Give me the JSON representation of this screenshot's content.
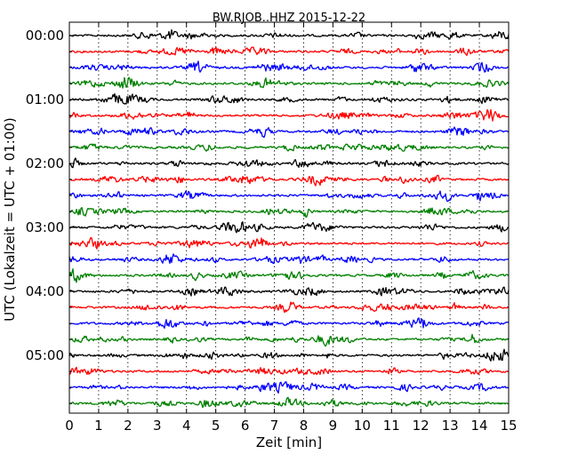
{
  "chart_data": {
    "type": "line",
    "title": "BW.RJOB..HHZ 2015-12-22",
    "xlabel": "Zeit  [min]",
    "ylabel": "UTC (Lokalzeit = UTC + 01:00)",
    "xlim": [
      0,
      15
    ],
    "x_ticks": [
      "0",
      "1",
      "2",
      "3",
      "4",
      "5",
      "6",
      "7",
      "8",
      "9",
      "10",
      "11",
      "12",
      "13",
      "14",
      "15"
    ],
    "y_ticks": [
      "00:00",
      "01:00",
      "02:00",
      "03:00",
      "04:00",
      "05:00"
    ],
    "grid": true,
    "colors": [
      "#000000",
      "#ff0000",
      "#0000ff",
      "#008000"
    ],
    "series": [
      {
        "start": "00:00",
        "color": "#000000"
      },
      {
        "start": "00:15",
        "color": "#ff0000"
      },
      {
        "start": "00:30",
        "color": "#0000ff"
      },
      {
        "start": "00:45",
        "color": "#008000"
      },
      {
        "start": "01:00",
        "color": "#000000"
      },
      {
        "start": "01:15",
        "color": "#ff0000"
      },
      {
        "start": "01:30",
        "color": "#0000ff"
      },
      {
        "start": "01:45",
        "color": "#008000"
      },
      {
        "start": "02:00",
        "color": "#000000"
      },
      {
        "start": "02:15",
        "color": "#ff0000"
      },
      {
        "start": "02:30",
        "color": "#0000ff"
      },
      {
        "start": "02:45",
        "color": "#008000"
      },
      {
        "start": "03:00",
        "color": "#000000"
      },
      {
        "start": "03:15",
        "color": "#ff0000"
      },
      {
        "start": "03:30",
        "color": "#0000ff"
      },
      {
        "start": "03:45",
        "color": "#008000"
      },
      {
        "start": "04:00",
        "color": "#000000"
      },
      {
        "start": "04:15",
        "color": "#ff0000"
      },
      {
        "start": "04:30",
        "color": "#0000ff"
      },
      {
        "start": "04:45",
        "color": "#008000"
      },
      {
        "start": "05:00",
        "color": "#000000"
      },
      {
        "start": "05:15",
        "color": "#ff0000"
      },
      {
        "start": "05:30",
        "color": "#0000ff"
      },
      {
        "start": "05:45",
        "color": "#008000"
      }
    ]
  }
}
